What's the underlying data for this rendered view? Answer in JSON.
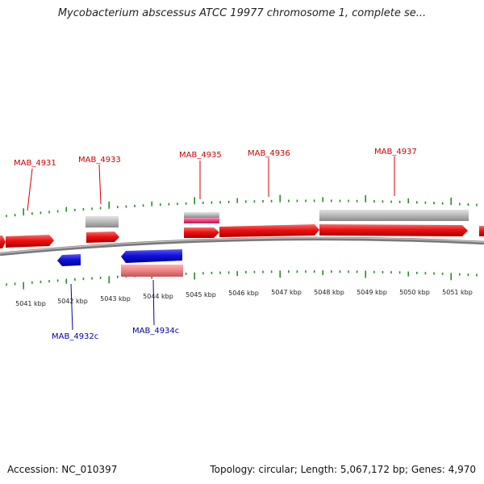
{
  "title": "Mycobacterium abscessus ATCC 19977 chromosome 1, complete se...",
  "footer": {
    "accession": "Accession: NC_010397",
    "stats": "Topology: circular; Length: 5,067,172 bp; Genes: 4,970"
  },
  "colors": {
    "forward_cds": "#ee1111",
    "reverse_cds": "#1111dd",
    "gray_feature": "#b8b8b8",
    "pink_feature": "#e8407a",
    "salmon_feature": "#ee8080",
    "tick": "#2a8a2a",
    "backbone": "#888888",
    "forward_label": "#cc0000",
    "reverse_label": "#0000aa"
  },
  "scale_labels": [
    "5041 kbp",
    "5042 kbp",
    "5043 kbp",
    "5044 kbp",
    "5045 kbp",
    "5046 kbp",
    "5047 kbp",
    "5048 kbp",
    "5049 kbp",
    "5050 kbp",
    "5051 kbp"
  ],
  "gene_labels_top": [
    "MAB_4931",
    "MAB_4933",
    "MAB_4935",
    "MAB_4936",
    "MAB_4937"
  ],
  "gene_labels_bottom": [
    "MAB_4932c",
    "MAB_4934c"
  ]
}
